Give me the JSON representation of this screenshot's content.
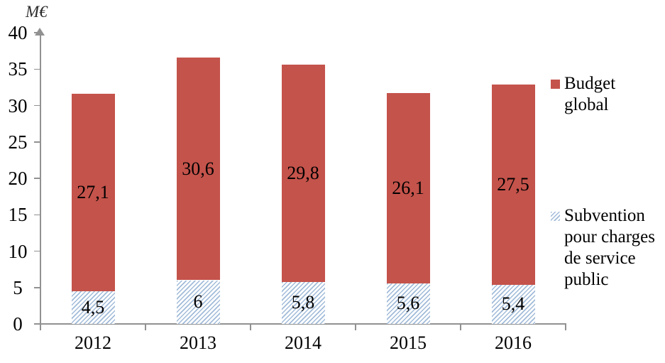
{
  "chart_data": {
    "type": "bar",
    "stacked": true,
    "title": "",
    "ylabel": "M€",
    "xlabel": "",
    "ylim": [
      0,
      40
    ],
    "ytick_step": 5,
    "yticks": [
      "0",
      "5",
      "10",
      "15",
      "20",
      "25",
      "30",
      "35",
      "40"
    ],
    "categories": [
      "2012",
      "2013",
      "2014",
      "2015",
      "2016"
    ],
    "series": [
      {
        "name": "Subvention pour charges de service public",
        "values": [
          4.5,
          6,
          5.8,
          5.6,
          5.4
        ],
        "value_labels": [
          "4,5",
          "6",
          "5,8",
          "5,6",
          "5,4"
        ],
        "color": "#A1BBD9",
        "pattern": "diagonal-hatch"
      },
      {
        "name": "Budget global",
        "values": [
          27.1,
          30.6,
          29.8,
          26.1,
          27.5
        ],
        "value_labels": [
          "27,1",
          "30,6",
          "29,8",
          "26,1",
          "27,5"
        ],
        "color": "#C4534B",
        "pattern": "solid"
      }
    ],
    "legend_position": "right",
    "grid": false,
    "axis_color": "#919191",
    "text_color": "#000000"
  }
}
